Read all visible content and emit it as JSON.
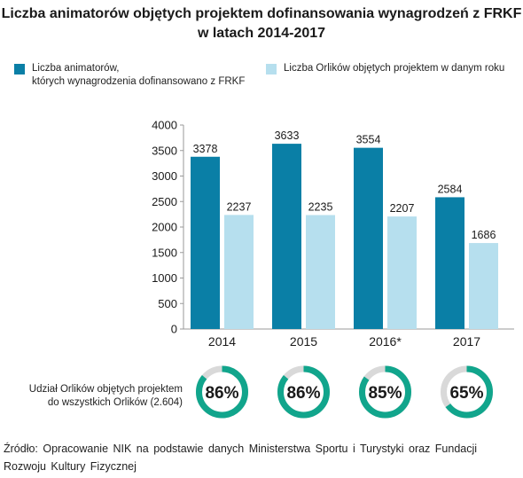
{
  "title_line1": "Liczba animatorów objętych projektem dofinansowania wynagrodzeń z FRKF",
  "title_line2": "w latach 2014-2017",
  "colors": {
    "series1": "#0a7fa6",
    "series2": "#b6dfee",
    "donut_fill": "#11a58c",
    "donut_rest": "#d9d9d9"
  },
  "share": {
    "label_line1": "Udział Orlików objętych projektem",
    "label_line2": "do wszystkich Orlików (2.604)",
    "values": [
      86,
      86,
      85,
      65
    ],
    "labels": [
      "86%",
      "86%",
      "85%",
      "65%"
    ]
  },
  "source": "Źródło: Opracowanie NIK na podstawie danych Ministerstwa Sportu i Turystyki oraz Fundacji Rozwoju Kultury Fizycznej",
  "chart_data": {
    "type": "bar",
    "categories": [
      "2014",
      "2015",
      "2016*",
      "2017"
    ],
    "series": [
      {
        "name": "Liczba animatorów, których wynagrodzenia dofinansowano z FRKF",
        "name_line1": "Liczba animatorów,",
        "name_line2": "których wynagrodzenia dofinansowano z FRKF",
        "values": [
          3378,
          3633,
          3554,
          2584
        ],
        "labels": [
          "3378",
          "3633",
          "3554",
          "2584"
        ]
      },
      {
        "name": "Liczba Orlików objętych projektem w danym roku",
        "values": [
          2237,
          2235,
          2207,
          1686
        ],
        "labels": [
          "2237",
          "2235",
          "2207",
          "1686"
        ]
      }
    ],
    "ylim": [
      0,
      4000
    ],
    "yticks": [
      "0",
      "500",
      "1000",
      "1500",
      "2000",
      "2500",
      "3000",
      "3500",
      "4000"
    ],
    "grid": false,
    "legend_position": "top"
  }
}
